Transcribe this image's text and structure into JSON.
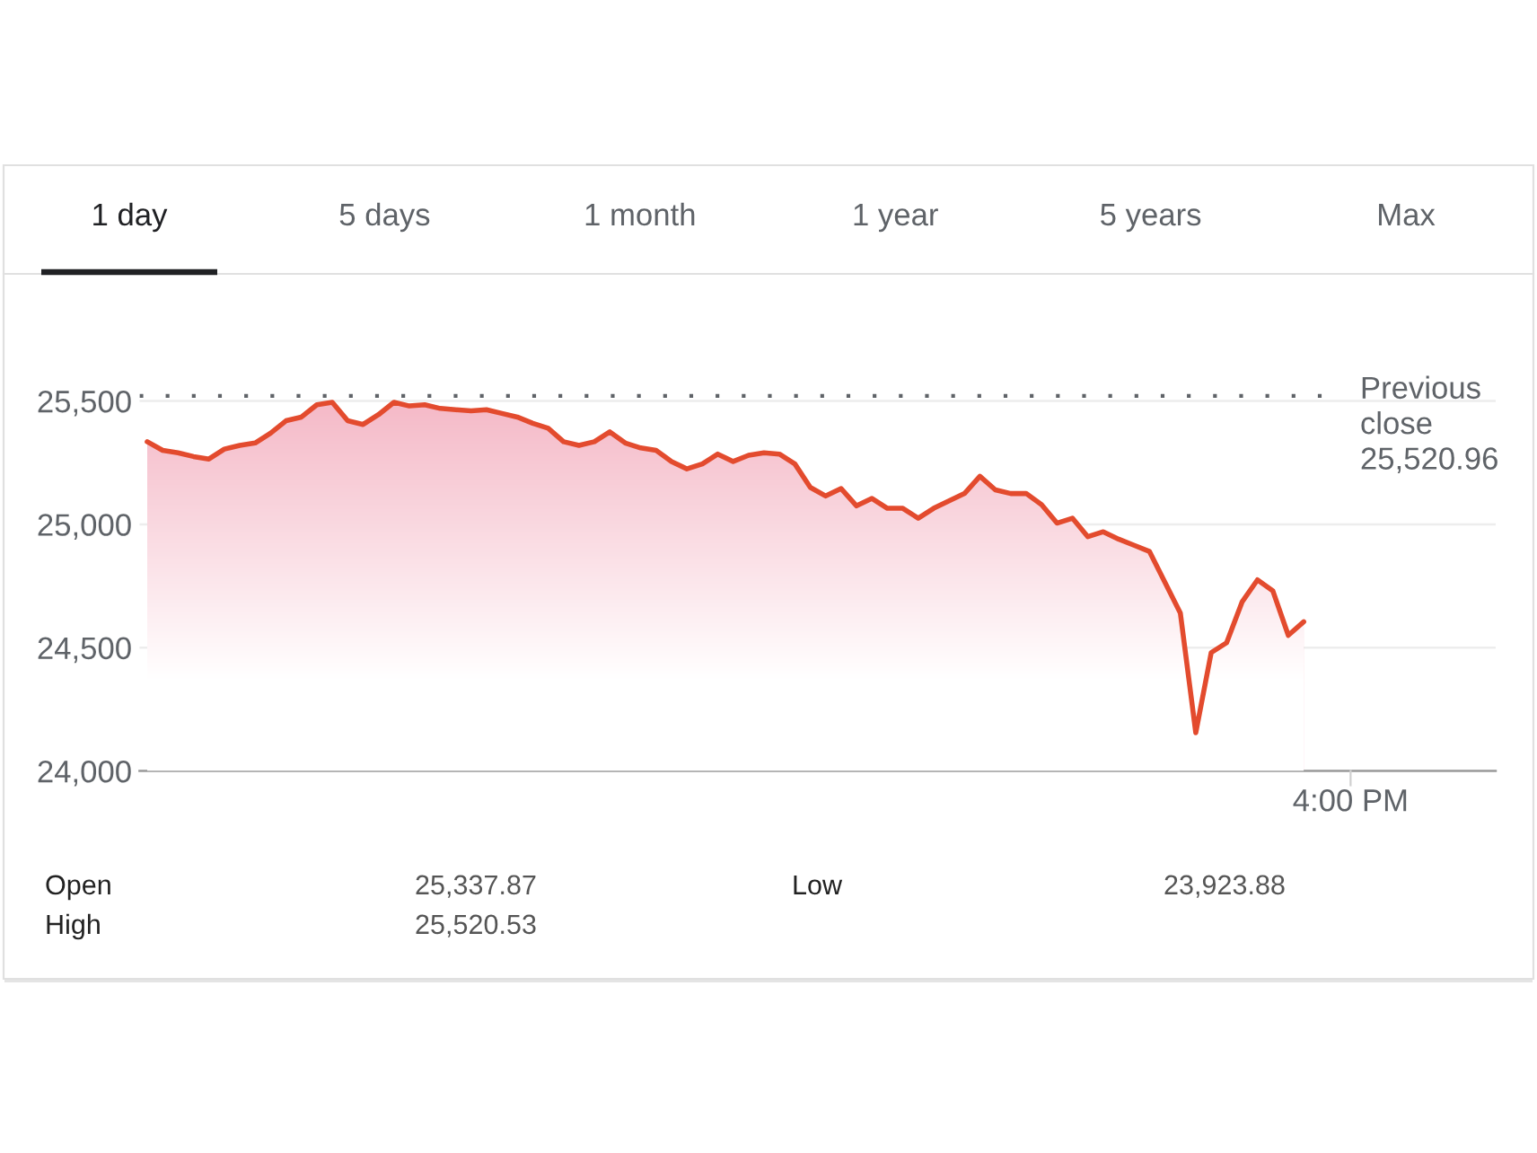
{
  "chart_data": {
    "type": "area",
    "categories": [
      null,
      null,
      null,
      null,
      null,
      null,
      null,
      null,
      null,
      null,
      null,
      null,
      null,
      null,
      null,
      null,
      null,
      null,
      null,
      null,
      null,
      null,
      null,
      null,
      null,
      null,
      null,
      null,
      null,
      null,
      null,
      null,
      null,
      null,
      null,
      null,
      null,
      null,
      null,
      null,
      null,
      null,
      null,
      null,
      null,
      null,
      null,
      null,
      null,
      null,
      null,
      null,
      null,
      null,
      null,
      null,
      null,
      null,
      null,
      null,
      null,
      null,
      null,
      null,
      null,
      null,
      null,
      null,
      null,
      null,
      null,
      null,
      null,
      null,
      null,
      null
    ],
    "series": [
      {
        "color": "#e34b2e",
        "values": [
          25335,
          25300,
          25290,
          25275,
          25265,
          25305,
          25320,
          25330,
          25370,
          25420,
          25435,
          25485,
          25495,
          25420,
          25405,
          25445,
          25495,
          25480,
          25485,
          25470,
          25465,
          25460,
          25465,
          25450,
          25435,
          25410,
          25390,
          25335,
          25320,
          25335,
          25375,
          25330,
          25310,
          25300,
          25255,
          25225,
          25245,
          25285,
          25255,
          25280,
          25290,
          25285,
          25245,
          25150,
          25115,
          25145,
          25075,
          25105,
          25065,
          25065,
          25025,
          25065,
          25095,
          25125,
          25195,
          25140,
          25125,
          25125,
          25080,
          25005,
          25025,
          24950,
          24970,
          24940,
          24915,
          24890,
          24765,
          24640,
          24155,
          24480,
          24520,
          24685,
          24775,
          24730,
          24550,
          24605
        ]
      }
    ],
    "ylim": [
      24000,
      25650
    ],
    "yticks": [
      {
        "value": 24000,
        "label": "24,000"
      },
      {
        "value": 24500,
        "label": "24,500"
      },
      {
        "value": 25000,
        "label": "25,000"
      },
      {
        "value": 25500,
        "label": "25,500"
      }
    ],
    "grid": "y",
    "ref_lines": [
      {
        "axis": "y",
        "value": 25520.96,
        "label": "Previous close 25,520.96",
        "color": "#5f6368",
        "line_style": "dotted"
      }
    ],
    "annotations": [
      "1 day",
      "5 days",
      "1 month",
      "1 year",
      "5 years",
      "Max",
      "4:00 PM",
      "Open",
      "25,337.87",
      "High",
      "25,520.53",
      "Low",
      "23,923.88"
    ]
  }
}
